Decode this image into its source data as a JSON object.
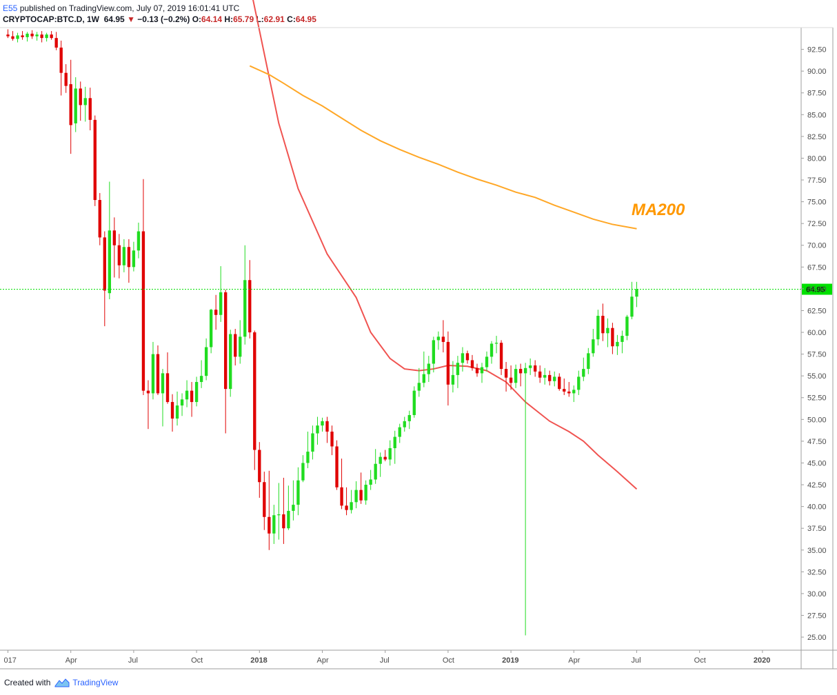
{
  "header": {
    "author": "E55",
    "published": " published on TradingView.com, July 07, 2019 16:01:41 UTC",
    "symbol": "CRYPTOCAP:BTC.D, 1W",
    "last": "64.95",
    "change": "−0.13 (−0.2%)",
    "open_label": "O:",
    "open": "64.14",
    "high_label": "H:",
    "high": "65.79",
    "low_label": "L:",
    "low": "62.91",
    "close_label": "C:",
    "close": "64.95"
  },
  "footer": {
    "created_with": "Created with",
    "brand": "TradingView"
  },
  "chart_data": {
    "type": "candlestick",
    "interval": "1W",
    "y_axis_side": "right",
    "ylim": [
      23.5,
      95.0
    ],
    "y_ticks": [
      "25.00",
      "27.50",
      "30.00",
      "32.50",
      "35.00",
      "37.50",
      "40.00",
      "42.50",
      "45.00",
      "47.50",
      "50.00",
      "52.50",
      "55.00",
      "57.50",
      "60.00",
      "62.50",
      "65.00",
      "67.50",
      "70.00",
      "72.50",
      "75.00",
      "77.50",
      "80.00",
      "82.50",
      "85.00",
      "87.50",
      "90.00",
      "92.50"
    ],
    "x_ticks": [
      {
        "label": "017",
        "t": 0
      },
      {
        "label": "Apr",
        "t": 13
      },
      {
        "label": "Jul",
        "t": 26
      },
      {
        "label": "Oct",
        "t": 39
      },
      {
        "label": "2018",
        "t": 52
      },
      {
        "label": "Apr",
        "t": 65
      },
      {
        "label": "Jul",
        "t": 78
      },
      {
        "label": "Oct",
        "t": 91
      },
      {
        "label": "2019",
        "t": 104
      },
      {
        "label": "Apr",
        "t": 117
      },
      {
        "label": "Jul",
        "t": 130
      },
      {
        "label": "Oct",
        "t": 143
      },
      {
        "label": "2020",
        "t": 156
      }
    ],
    "x_range": [
      -0.5,
      164
    ],
    "candles": [
      {
        "o": 94.2,
        "h": 94.8,
        "l": 93.8,
        "c": 94.0
      },
      {
        "o": 94.0,
        "h": 94.6,
        "l": 93.5,
        "c": 93.7
      },
      {
        "o": 93.7,
        "h": 94.4,
        "l": 93.3,
        "c": 94.1
      },
      {
        "o": 94.1,
        "h": 94.6,
        "l": 93.6,
        "c": 93.9
      },
      {
        "o": 93.9,
        "h": 94.5,
        "l": 93.4,
        "c": 94.3
      },
      {
        "o": 94.3,
        "h": 94.7,
        "l": 93.7,
        "c": 94.0
      },
      {
        "o": 94.0,
        "h": 94.5,
        "l": 93.5,
        "c": 94.2
      },
      {
        "o": 94.2,
        "h": 94.6,
        "l": 93.3,
        "c": 93.8
      },
      {
        "o": 93.8,
        "h": 94.4,
        "l": 93.4,
        "c": 94.2
      },
      {
        "o": 94.2,
        "h": 94.6,
        "l": 93.6,
        "c": 93.8
      },
      {
        "o": 93.8,
        "h": 94.5,
        "l": 92.4,
        "c": 92.7
      },
      {
        "o": 92.7,
        "h": 93.5,
        "l": 87.2,
        "c": 89.8
      },
      {
        "o": 89.8,
        "h": 90.8,
        "l": 87.5,
        "c": 88.3
      },
      {
        "o": 88.5,
        "h": 91.3,
        "l": 80.5,
        "c": 83.8
      },
      {
        "o": 84.0,
        "h": 89.3,
        "l": 83.0,
        "c": 88.0
      },
      {
        "o": 88.0,
        "h": 88.8,
        "l": 84.3,
        "c": 86.1
      },
      {
        "o": 86.1,
        "h": 88.2,
        "l": 84.2,
        "c": 86.9
      },
      {
        "o": 86.9,
        "h": 88.1,
        "l": 83.2,
        "c": 84.4
      },
      {
        "o": 84.4,
        "h": 84.9,
        "l": 74.5,
        "c": 75.2
      },
      {
        "o": 75.2,
        "h": 76.0,
        "l": 70.0,
        "c": 70.9
      },
      {
        "o": 70.9,
        "h": 71.6,
        "l": 60.7,
        "c": 64.8
      },
      {
        "o": 64.5,
        "h": 77.3,
        "l": 63.8,
        "c": 71.7
      },
      {
        "o": 71.7,
        "h": 73.2,
        "l": 66.3,
        "c": 70.0
      },
      {
        "o": 70.0,
        "h": 71.3,
        "l": 66.2,
        "c": 67.7
      },
      {
        "o": 67.7,
        "h": 70.7,
        "l": 66.9,
        "c": 69.8
      },
      {
        "o": 69.8,
        "h": 70.7,
        "l": 65.7,
        "c": 67.5
      },
      {
        "o": 67.5,
        "h": 70.4,
        "l": 67.0,
        "c": 69.4
      },
      {
        "o": 69.4,
        "h": 72.6,
        "l": 68.5,
        "c": 71.6
      },
      {
        "o": 71.6,
        "h": 77.6,
        "l": 52.8,
        "c": 53.3
      },
      {
        "o": 53.3,
        "h": 54.5,
        "l": 48.9,
        "c": 53.0
      },
      {
        "o": 53.0,
        "h": 58.9,
        "l": 52.3,
        "c": 57.5
      },
      {
        "o": 57.5,
        "h": 58.5,
        "l": 52.8,
        "c": 53.0
      },
      {
        "o": 53.0,
        "h": 55.8,
        "l": 49.2,
        "c": 55.3
      },
      {
        "o": 55.3,
        "h": 57.7,
        "l": 51.8,
        "c": 52.0
      },
      {
        "o": 52.0,
        "h": 52.9,
        "l": 48.6,
        "c": 50.1
      },
      {
        "o": 50.1,
        "h": 53.2,
        "l": 49.3,
        "c": 51.6
      },
      {
        "o": 51.6,
        "h": 53.0,
        "l": 50.4,
        "c": 52.3
      },
      {
        "o": 52.3,
        "h": 54.5,
        "l": 51.4,
        "c": 53.3
      },
      {
        "o": 53.3,
        "h": 54.3,
        "l": 50.3,
        "c": 52.0
      },
      {
        "o": 52.0,
        "h": 54.9,
        "l": 51.5,
        "c": 54.3
      },
      {
        "o": 54.3,
        "h": 56.8,
        "l": 53.6,
        "c": 55.0
      },
      {
        "o": 55.0,
        "h": 59.3,
        "l": 54.5,
        "c": 58.3
      },
      {
        "o": 58.3,
        "h": 62.7,
        "l": 57.6,
        "c": 62.6
      },
      {
        "o": 62.6,
        "h": 64.3,
        "l": 60.3,
        "c": 62.0
      },
      {
        "o": 62.0,
        "h": 67.6,
        "l": 61.2,
        "c": 64.6
      },
      {
        "o": 64.6,
        "h": 64.9,
        "l": 48.4,
        "c": 53.5
      },
      {
        "o": 53.5,
        "h": 60.3,
        "l": 52.6,
        "c": 59.8
      },
      {
        "o": 59.8,
        "h": 60.4,
        "l": 56.2,
        "c": 57.2
      },
      {
        "o": 57.2,
        "h": 61.4,
        "l": 56.4,
        "c": 59.5
      },
      {
        "o": 59.5,
        "h": 70.0,
        "l": 58.6,
        "c": 66.0
      },
      {
        "o": 66.0,
        "h": 68.3,
        "l": 59.3,
        "c": 60.0
      },
      {
        "o": 60.0,
        "h": 60.2,
        "l": 44.2,
        "c": 46.5
      },
      {
        "o": 46.5,
        "h": 47.4,
        "l": 41.0,
        "c": 42.8
      },
      {
        "o": 42.8,
        "h": 44.0,
        "l": 37.3,
        "c": 38.8
      },
      {
        "o": 38.8,
        "h": 44.1,
        "l": 35.0,
        "c": 36.9
      },
      {
        "o": 36.9,
        "h": 40.2,
        "l": 35.7,
        "c": 39.0
      },
      {
        "o": 39.0,
        "h": 42.7,
        "l": 36.2,
        "c": 39.1
      },
      {
        "o": 39.1,
        "h": 43.3,
        "l": 35.7,
        "c": 37.5
      },
      {
        "o": 37.5,
        "h": 42.4,
        "l": 37.3,
        "c": 39.5
      },
      {
        "o": 39.5,
        "h": 43.0,
        "l": 38.4,
        "c": 40.2
      },
      {
        "o": 40.2,
        "h": 44.5,
        "l": 39.0,
        "c": 43.0
      },
      {
        "o": 43.0,
        "h": 45.9,
        "l": 42.8,
        "c": 45.0
      },
      {
        "o": 45.0,
        "h": 48.6,
        "l": 44.4,
        "c": 46.3
      },
      {
        "o": 46.3,
        "h": 49.3,
        "l": 45.4,
        "c": 48.4
      },
      {
        "o": 48.4,
        "h": 50.3,
        "l": 47.1,
        "c": 49.3
      },
      {
        "o": 49.3,
        "h": 50.2,
        "l": 48.6,
        "c": 49.8
      },
      {
        "o": 49.8,
        "h": 50.3,
        "l": 47.3,
        "c": 48.6
      },
      {
        "o": 48.6,
        "h": 49.3,
        "l": 45.9,
        "c": 46.9
      },
      {
        "o": 46.9,
        "h": 47.6,
        "l": 41.9,
        "c": 42.2
      },
      {
        "o": 42.2,
        "h": 45.5,
        "l": 39.7,
        "c": 40.1
      },
      {
        "o": 40.1,
        "h": 42.2,
        "l": 39.0,
        "c": 39.6
      },
      {
        "o": 39.6,
        "h": 41.9,
        "l": 39.2,
        "c": 40.5
      },
      {
        "o": 40.5,
        "h": 42.9,
        "l": 39.8,
        "c": 41.9
      },
      {
        "o": 41.9,
        "h": 43.9,
        "l": 40.3,
        "c": 40.7
      },
      {
        "o": 40.7,
        "h": 43.0,
        "l": 40.2,
        "c": 42.5
      },
      {
        "o": 42.5,
        "h": 44.2,
        "l": 41.9,
        "c": 43.1
      },
      {
        "o": 43.1,
        "h": 46.6,
        "l": 42.6,
        "c": 44.9
      },
      {
        "o": 44.9,
        "h": 46.2,
        "l": 43.4,
        "c": 45.7
      },
      {
        "o": 45.7,
        "h": 46.5,
        "l": 45.2,
        "c": 45.4
      },
      {
        "o": 45.4,
        "h": 47.6,
        "l": 44.7,
        "c": 46.7
      },
      {
        "o": 46.7,
        "h": 48.7,
        "l": 44.9,
        "c": 48.0
      },
      {
        "o": 48.0,
        "h": 49.5,
        "l": 47.3,
        "c": 49.1
      },
      {
        "o": 49.1,
        "h": 50.3,
        "l": 48.6,
        "c": 49.8
      },
      {
        "o": 49.8,
        "h": 51.0,
        "l": 48.9,
        "c": 50.5
      },
      {
        "o": 50.5,
        "h": 53.8,
        "l": 50.2,
        "c": 53.3
      },
      {
        "o": 53.3,
        "h": 55.9,
        "l": 52.6,
        "c": 54.2
      },
      {
        "o": 54.2,
        "h": 57.8,
        "l": 53.7,
        "c": 55.2
      },
      {
        "o": 55.2,
        "h": 57.3,
        "l": 54.3,
        "c": 56.4
      },
      {
        "o": 56.4,
        "h": 59.5,
        "l": 55.4,
        "c": 59.1
      },
      {
        "o": 59.1,
        "h": 60.1,
        "l": 58.0,
        "c": 59.5
      },
      {
        "o": 59.5,
        "h": 61.4,
        "l": 57.7,
        "c": 58.9
      },
      {
        "o": 58.9,
        "h": 60.1,
        "l": 51.6,
        "c": 54.0
      },
      {
        "o": 54.0,
        "h": 56.7,
        "l": 53.1,
        "c": 55.1
      },
      {
        "o": 55.1,
        "h": 57.3,
        "l": 53.6,
        "c": 56.5
      },
      {
        "o": 56.5,
        "h": 58.3,
        "l": 55.5,
        "c": 57.6
      },
      {
        "o": 57.6,
        "h": 57.9,
        "l": 56.4,
        "c": 56.8
      },
      {
        "o": 56.8,
        "h": 57.4,
        "l": 55.6,
        "c": 55.9
      },
      {
        "o": 55.9,
        "h": 56.4,
        "l": 54.9,
        "c": 55.3
      },
      {
        "o": 55.3,
        "h": 56.5,
        "l": 54.2,
        "c": 56.0
      },
      {
        "o": 56.0,
        "h": 57.8,
        "l": 55.5,
        "c": 57.2
      },
      {
        "o": 57.2,
        "h": 59.0,
        "l": 56.4,
        "c": 58.7
      },
      {
        "o": 58.7,
        "h": 59.6,
        "l": 57.6,
        "c": 58.8
      },
      {
        "o": 58.8,
        "h": 59.1,
        "l": 55.1,
        "c": 55.8
      },
      {
        "o": 55.8,
        "h": 56.6,
        "l": 53.2,
        "c": 54.8
      },
      {
        "o": 54.8,
        "h": 56.2,
        "l": 53.4,
        "c": 54.2
      },
      {
        "o": 54.2,
        "h": 56.3,
        "l": 53.6,
        "c": 55.8
      },
      {
        "o": 55.8,
        "h": 56.4,
        "l": 53.8,
        "c": 55.3
      },
      {
        "o": 55.3,
        "h": 56.5,
        "l": 25.2,
        "c": 55.9
      },
      {
        "o": 55.9,
        "h": 57.0,
        "l": 55.1,
        "c": 56.2
      },
      {
        "o": 56.2,
        "h": 56.8,
        "l": 54.9,
        "c": 55.5
      },
      {
        "o": 55.5,
        "h": 56.2,
        "l": 54.2,
        "c": 54.8
      },
      {
        "o": 54.8,
        "h": 55.9,
        "l": 54.0,
        "c": 55.1
      },
      {
        "o": 55.1,
        "h": 55.6,
        "l": 53.9,
        "c": 54.4
      },
      {
        "o": 54.4,
        "h": 55.5,
        "l": 53.8,
        "c": 54.9
      },
      {
        "o": 54.9,
        "h": 55.3,
        "l": 53.3,
        "c": 53.5
      },
      {
        "o": 53.5,
        "h": 54.7,
        "l": 52.8,
        "c": 53.2
      },
      {
        "o": 53.2,
        "h": 54.3,
        "l": 52.6,
        "c": 53.0
      },
      {
        "o": 53.0,
        "h": 53.9,
        "l": 52.0,
        "c": 53.4
      },
      {
        "o": 53.4,
        "h": 55.6,
        "l": 52.8,
        "c": 54.9
      },
      {
        "o": 54.9,
        "h": 57.1,
        "l": 54.4,
        "c": 55.8
      },
      {
        "o": 55.8,
        "h": 58.2,
        "l": 55.2,
        "c": 57.6
      },
      {
        "o": 57.6,
        "h": 60.4,
        "l": 57.2,
        "c": 59.2
      },
      {
        "o": 59.2,
        "h": 62.6,
        "l": 58.5,
        "c": 61.9
      },
      {
        "o": 61.9,
        "h": 63.3,
        "l": 59.0,
        "c": 59.9
      },
      {
        "o": 59.9,
        "h": 61.6,
        "l": 58.3,
        "c": 60.5
      },
      {
        "o": 60.5,
        "h": 61.1,
        "l": 57.5,
        "c": 58.4
      },
      {
        "o": 58.4,
        "h": 59.7,
        "l": 57.4,
        "c": 58.9
      },
      {
        "o": 58.9,
        "h": 60.2,
        "l": 57.6,
        "c": 59.6
      },
      {
        "o": 59.6,
        "h": 62.0,
        "l": 59.1,
        "c": 61.8
      },
      {
        "o": 61.8,
        "h": 65.8,
        "l": 61.5,
        "c": 64.1
      },
      {
        "o": 64.1,
        "h": 65.8,
        "l": 62.9,
        "c": 64.95
      }
    ],
    "ma_red": {
      "color": "#f05350",
      "points": [
        [
          14,
          94.8
        ],
        [
          16,
          93.5
        ],
        [
          18,
          91.0
        ],
        [
          22,
          87.5
        ],
        [
          25,
          85.5
        ],
        [
          27,
          83.5
        ],
        [
          30,
          78.5
        ],
        [
          34,
          72.5
        ],
        [
          38,
          66.0
        ],
        [
          42,
          61.0
        ],
        [
          46,
          57.5
        ],
        [
          50,
          52.0
        ],
        [
          53,
          44.0
        ],
        [
          56,
          36.0
        ],
        [
          60,
          28.5
        ],
        [
          66,
          21.0
        ],
        [
          72,
          16.0
        ],
        [
          75,
          12.0
        ],
        [
          79,
          9.0
        ],
        [
          82,
          7.8
        ],
        [
          85,
          7.6
        ],
        [
          88,
          7.8
        ],
        [
          91,
          8.2
        ],
        [
          95,
          8.1
        ],
        [
          99,
          7.6
        ],
        [
          103,
          6.3
        ],
        [
          107,
          4.0
        ],
        [
          112,
          1.8
        ],
        [
          116,
          0.6
        ],
        [
          119,
          -0.5
        ],
        [
          122,
          -2.1
        ],
        [
          126,
          -4.0
        ],
        [
          130,
          -6.0
        ]
      ],
      "ma_axis_offset": 48.0
    },
    "ma200": {
      "label": "MA200",
      "color": "#ffa726",
      "points": [
        [
          50,
          90.6
        ],
        [
          54,
          89.6
        ],
        [
          57,
          88.6
        ],
        [
          61,
          87.2
        ],
        [
          65,
          86.0
        ],
        [
          69,
          84.6
        ],
        [
          73,
          83.2
        ],
        [
          77,
          82.0
        ],
        [
          81,
          81.0
        ],
        [
          85,
          80.1
        ],
        [
          89,
          79.3
        ],
        [
          93,
          78.4
        ],
        [
          97,
          77.6
        ],
        [
          101,
          76.9
        ],
        [
          105,
          76.1
        ],
        [
          109,
          75.5
        ],
        [
          113,
          74.6
        ],
        [
          117,
          73.8
        ],
        [
          121,
          73.0
        ],
        [
          125,
          72.4
        ],
        [
          130,
          71.9
        ]
      ]
    },
    "last_price_line": {
      "value": 64.95,
      "color": "#00e000",
      "label": "64.95"
    },
    "colors": {
      "up": "#20dc20",
      "down": "#e00000",
      "grid": "#eeeeee",
      "axis_text": "#4a4a4a"
    }
  }
}
